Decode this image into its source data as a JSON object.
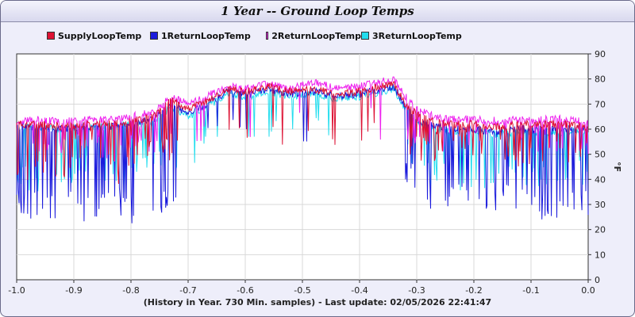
{
  "window": {
    "title": "1 Year -- Ground Loop Temps"
  },
  "footer": {
    "text": "(History in Year. 730 Min. samples) - Last update: 02/05/2026 22:41:47"
  },
  "colors": {
    "frame_bg": "#eeeefa",
    "grid": "#d8d8d8",
    "axis": "#333333"
  },
  "chart_data": {
    "type": "line",
    "title": "1 Year -- Ground Loop Temps",
    "xlabel": "",
    "ylabel": "°F",
    "xlim": [
      -1.0,
      0.0
    ],
    "ylim": [
      0,
      90
    ],
    "x_ticks": [
      "-1.0",
      "-0.9",
      "-0.8",
      "-0.7",
      "-0.6",
      "-0.5",
      "-0.4",
      "-0.3",
      "-0.2",
      "-0.1",
      "0.0"
    ],
    "y_ticks": [
      "0",
      "10",
      "20",
      "30",
      "40",
      "50",
      "60",
      "70",
      "80",
      "90"
    ],
    "grid": true,
    "legend_position": "top-left",
    "series": [
      {
        "name": "SupplyLoopTemp",
        "color": "#dd1133",
        "x": [
          -1.0,
          -0.96,
          -0.92,
          -0.88,
          -0.84,
          -0.8,
          -0.76,
          -0.73,
          -0.7,
          -0.66,
          -0.63,
          -0.6,
          -0.56,
          -0.52,
          -0.48,
          -0.44,
          -0.4,
          -0.36,
          -0.34,
          -0.32,
          -0.3,
          -0.27,
          -0.24,
          -0.2,
          -0.16,
          -0.12,
          -0.08,
          -0.04,
          0.0
        ],
        "y": [
          62,
          62,
          61,
          62,
          62,
          63,
          65,
          72,
          68,
          72,
          76,
          75,
          77,
          75,
          76,
          74,
          75,
          77,
          78,
          70,
          66,
          63,
          62,
          62,
          61,
          62,
          62,
          62,
          61
        ],
        "dips": [
          39,
          40,
          48,
          38,
          46,
          45,
          41,
          48,
          47,
          49,
          46,
          50,
          44,
          48,
          47,
          49,
          50,
          45,
          47,
          46
        ]
      },
      {
        "name": "1ReturnLoopTemp",
        "color": "#1a1adc",
        "x": [
          -1.0,
          -0.96,
          -0.92,
          -0.88,
          -0.84,
          -0.8,
          -0.76,
          -0.73,
          -0.7,
          -0.66,
          -0.63,
          -0.6,
          -0.56,
          -0.52,
          -0.48,
          -0.44,
          -0.4,
          -0.36,
          -0.34,
          -0.32,
          -0.3,
          -0.27,
          -0.24,
          -0.2,
          -0.16,
          -0.12,
          -0.08,
          -0.04,
          0.0
        ],
        "y": [
          61,
          61,
          60,
          61,
          61,
          62,
          64,
          70,
          66,
          71,
          75,
          74,
          76,
          74,
          75,
          73,
          74,
          76,
          77,
          69,
          64,
          61,
          60,
          60,
          59,
          60,
          60,
          60,
          60
        ],
        "dips": [
          24,
          24,
          23,
          25,
          22,
          24,
          28,
          56,
          60,
          64,
          55,
          63,
          37,
          35,
          28,
          26,
          25,
          27,
          24,
          25
        ]
      },
      {
        "name": "2ReturnLoopTemp",
        "color": "#ee22ee",
        "x": [
          -1.0,
          -0.96,
          -0.92,
          -0.88,
          -0.84,
          -0.8,
          -0.76,
          -0.73,
          -0.7,
          -0.66,
          -0.63,
          -0.6,
          -0.56,
          -0.52,
          -0.48,
          -0.44,
          -0.4,
          -0.36,
          -0.34,
          -0.32,
          -0.3,
          -0.27,
          -0.24,
          -0.2,
          -0.16,
          -0.12,
          -0.08,
          -0.04,
          0.0
        ],
        "y": [
          63,
          64,
          63,
          64,
          64,
          65,
          67,
          73,
          70,
          74,
          77,
          76,
          78,
          76,
          79,
          76,
          77,
          79,
          80,
          73,
          68,
          65,
          64,
          64,
          63,
          64,
          64,
          64,
          63
        ],
        "dips": [
          44,
          45,
          52,
          45,
          50,
          48,
          46,
          52,
          51,
          53,
          50,
          54,
          50,
          52,
          51,
          53,
          54,
          50,
          51,
          50
        ]
      },
      {
        "name": "3ReturnLoopTemp",
        "color": "#22ddee",
        "x": [
          -1.0,
          -0.96,
          -0.92,
          -0.88,
          -0.84,
          -0.8,
          -0.76,
          -0.73,
          -0.7,
          -0.66,
          -0.63,
          -0.6,
          -0.56,
          -0.52,
          -0.48,
          -0.44,
          -0.4,
          -0.36,
          -0.34,
          -0.32,
          -0.3,
          -0.27,
          -0.24,
          -0.2,
          -0.16,
          -0.12,
          -0.08,
          -0.04,
          0.0
        ],
        "y": [
          60,
          61,
          60,
          61,
          61,
          62,
          63,
          69,
          65,
          70,
          74,
          73,
          75,
          73,
          74,
          72,
          73,
          75,
          76,
          68,
          63,
          60,
          59,
          59,
          58,
          59,
          59,
          59,
          59
        ],
        "dips": [
          35,
          36,
          42,
          34,
          40,
          38,
          36,
          54,
          57,
          60,
          52,
          58,
          40,
          42,
          36,
          35,
          34,
          37,
          35,
          36
        ]
      }
    ]
  }
}
